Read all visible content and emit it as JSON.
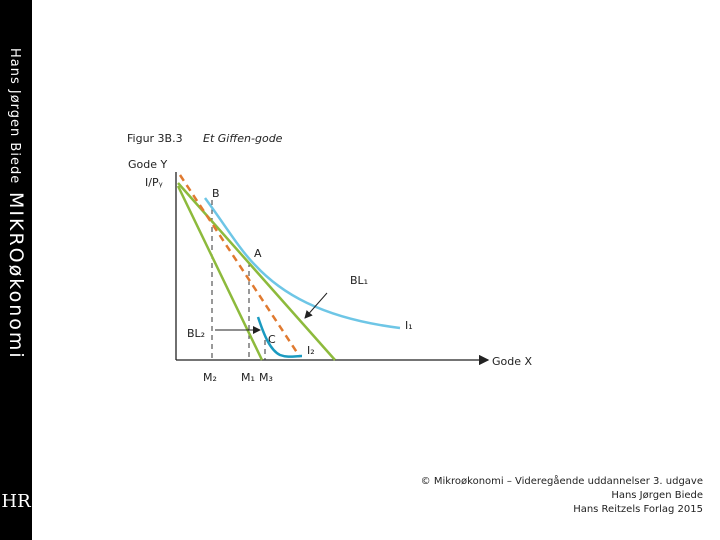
{
  "sidebar": {
    "author": "Hans Jørgen Biede",
    "book": "MIKROøkonomi",
    "logo": "HR"
  },
  "figure": {
    "number": "Figur 3B.3",
    "caption": "Et Giffen-gode",
    "y_axis_label": "Gode Y",
    "y_intercept_label": "I/Pᵧ",
    "x_axis_label": "Gode X",
    "points": [
      "B",
      "A",
      "C"
    ],
    "lines": [
      "BL₁",
      "BL₂",
      "I₁",
      "I₂"
    ],
    "x_marks": [
      "M₂",
      "M₁",
      "M₃"
    ]
  },
  "footer": [
    "© Mikroøkonomi – Videregående uddannelser 3. udgave",
    "Hans Jørgen Biede",
    "Hans Reitzels Forlag 2015"
  ]
}
